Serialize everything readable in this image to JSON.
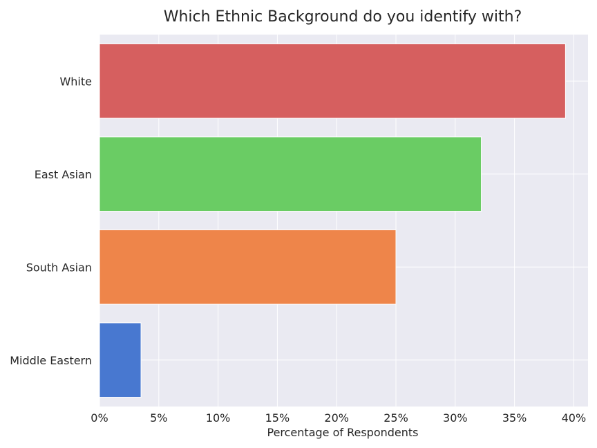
{
  "chart_data": {
    "type": "bar",
    "orientation": "horizontal",
    "title": "Which Ethnic Background do you identify with?",
    "xlabel": "Percentage of Respondents",
    "ylabel": "",
    "categories": [
      "White",
      "East Asian",
      "South Asian",
      "Middle Eastern"
    ],
    "values": [
      39.3,
      32.2,
      25.0,
      3.5
    ],
    "xlim": [
      0,
      41.2
    ],
    "xticks": [
      "0%",
      "5%",
      "10%",
      "15%",
      "20%",
      "25%",
      "30%",
      "35%",
      "40%"
    ],
    "xtick_values": [
      0,
      5,
      10,
      15,
      20,
      25,
      30,
      35,
      40
    ],
    "colors": [
      "#d65f5f",
      "#6acc64",
      "#ee854a",
      "#4878d0"
    ],
    "background": "#eaeaf2",
    "grid": true
  }
}
